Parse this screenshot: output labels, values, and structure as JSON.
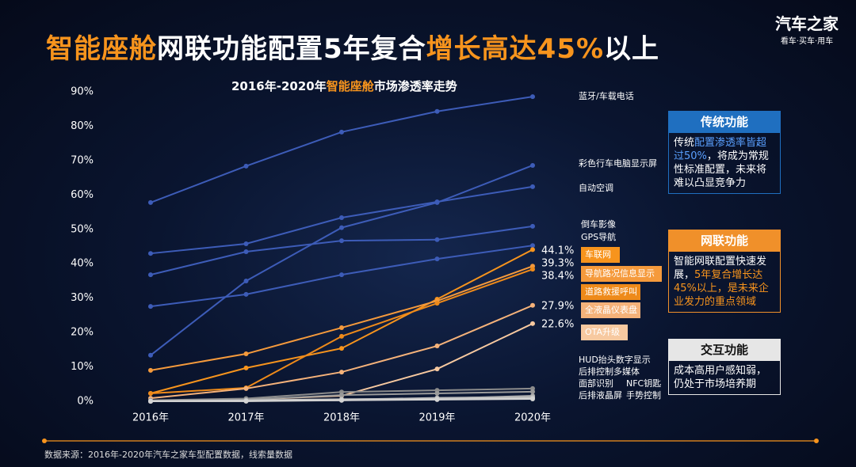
{
  "header": {
    "title_parts": [
      "智能座舱",
      "网联功能配置5年复合",
      "增长高达45%",
      "以上"
    ],
    "logo": "汽车之家",
    "logo_sub": "看车·买车·用车"
  },
  "chart_data": {
    "type": "line",
    "title_parts": [
      "2016年-2020年",
      "智能座舱",
      "市场渗透率走势"
    ],
    "categories": [
      "2016年",
      "2017年",
      "2018年",
      "2019年",
      "2020年"
    ],
    "ylim": [
      0,
      90
    ],
    "yticks": [
      {
        "value": 0,
        "label": "0%"
      },
      {
        "value": 10,
        "label": "10%"
      },
      {
        "value": 20,
        "label": "20%"
      },
      {
        "value": 30,
        "label": "30%"
      },
      {
        "value": 40,
        "label": "40%"
      },
      {
        "value": 50,
        "label": "50%"
      },
      {
        "value": 60,
        "label": "60%"
      },
      {
        "value": 70,
        "label": "70%"
      },
      {
        "value": 80,
        "label": "80%"
      },
      {
        "value": 90,
        "label": "90%"
      }
    ],
    "grid": false,
    "series": [
      {
        "name": "蓝牙/车载电话",
        "color": "#3d5cb8",
        "values": [
          57.8,
          68.4,
          78.3,
          84.3,
          88.6
        ]
      },
      {
        "name": "彩色行车电脑显示屏",
        "color": "#3d5cb8",
        "values": [
          13.4,
          35,
          50.5,
          57.8,
          68.6
        ]
      },
      {
        "name": "自动空调",
        "color": "#3d5cb8",
        "values": [
          43,
          45.8,
          53.4,
          58,
          62.4
        ]
      },
      {
        "name": "倒车影像",
        "color": "#3d5cb8",
        "values": [
          36.8,
          43.5,
          46.7,
          47,
          50.9
        ]
      },
      {
        "name": "GPS导航",
        "color": "#3d5cb8",
        "values": [
          27.6,
          31.1,
          36.8,
          41.4,
          45.3
        ]
      },
      {
        "name": "车联网",
        "color": "#f7941d",
        "values": [
          2.3,
          9.7,
          15.4,
          29.7,
          44.1
        ],
        "value_labels": [
          null,
          null,
          null,
          null,
          "44.1%"
        ]
      },
      {
        "name": "导航路况信息显示",
        "color": "#f59a3c",
        "values": [
          9,
          13.8,
          21.4,
          29.2,
          39.3
        ],
        "value_labels": [
          null,
          null,
          null,
          null,
          "39.3%"
        ]
      },
      {
        "name": "道路救援呼叫",
        "color": "#ee8a1a",
        "values": [
          2.3,
          3.9,
          18.9,
          28.5,
          38.4
        ],
        "value_labels": [
          null,
          null,
          null,
          null,
          "38.4%"
        ]
      },
      {
        "name": "全液晶仪表盘",
        "color": "#f5b27a",
        "values": [
          0.9,
          3.7,
          8.5,
          16.1,
          27.9
        ],
        "value_labels": [
          null,
          null,
          null,
          null,
          "27.9%"
        ]
      },
      {
        "name": "OTA升级",
        "color": "#f7c9a0",
        "values": [
          0,
          0.5,
          1.6,
          9.4,
          22.6
        ],
        "value_labels": [
          null,
          null,
          null,
          null,
          "22.6%"
        ]
      },
      {
        "name": "HUD抬头数字显示",
        "color": "#8c8c8c",
        "values": [
          0.3,
          0.8,
          2.7,
          3.2,
          3.7
        ]
      },
      {
        "name": "后排控制多媒体",
        "color": "#9a9a9a",
        "values": [
          0.2,
          0.5,
          1.8,
          2.3,
          2.8
        ]
      },
      {
        "name": "面部识别",
        "color": "#a8a8a8",
        "values": [
          0,
          0,
          0.3,
          0.8,
          1.6
        ]
      },
      {
        "name": "NFC钥匙",
        "color": "#b4b4b4",
        "values": [
          0,
          0.1,
          0.5,
          1,
          1.3
        ]
      },
      {
        "name": "后排液晶屏",
        "color": "#c4c4c4",
        "values": [
          0.1,
          0.3,
          0.6,
          0.8,
          1
        ]
      },
      {
        "name": "手势控制",
        "color": "#d4d4d4",
        "values": [
          0,
          0.1,
          0.3,
          0.5,
          0.7
        ]
      }
    ]
  },
  "panels": [
    {
      "title": "传统功能",
      "text_parts": [
        "传统",
        "配置渗透率皆超过50%",
        "，将成为常规性标准配置，未来将难以凸显竞争力"
      ]
    },
    {
      "title": "网联功能",
      "text_parts": [
        "智能网联配置快速发展，",
        "5年复合增长达45%以上，是未来企业发力的重点领域"
      ]
    },
    {
      "title": "交互功能",
      "text_parts": [
        "成本高用户感知弱，仍处于市场培养期"
      ]
    }
  ],
  "footer": {
    "source": "数据来源：2016年-2020年汽车之家车型配置数据，线索量数据"
  }
}
